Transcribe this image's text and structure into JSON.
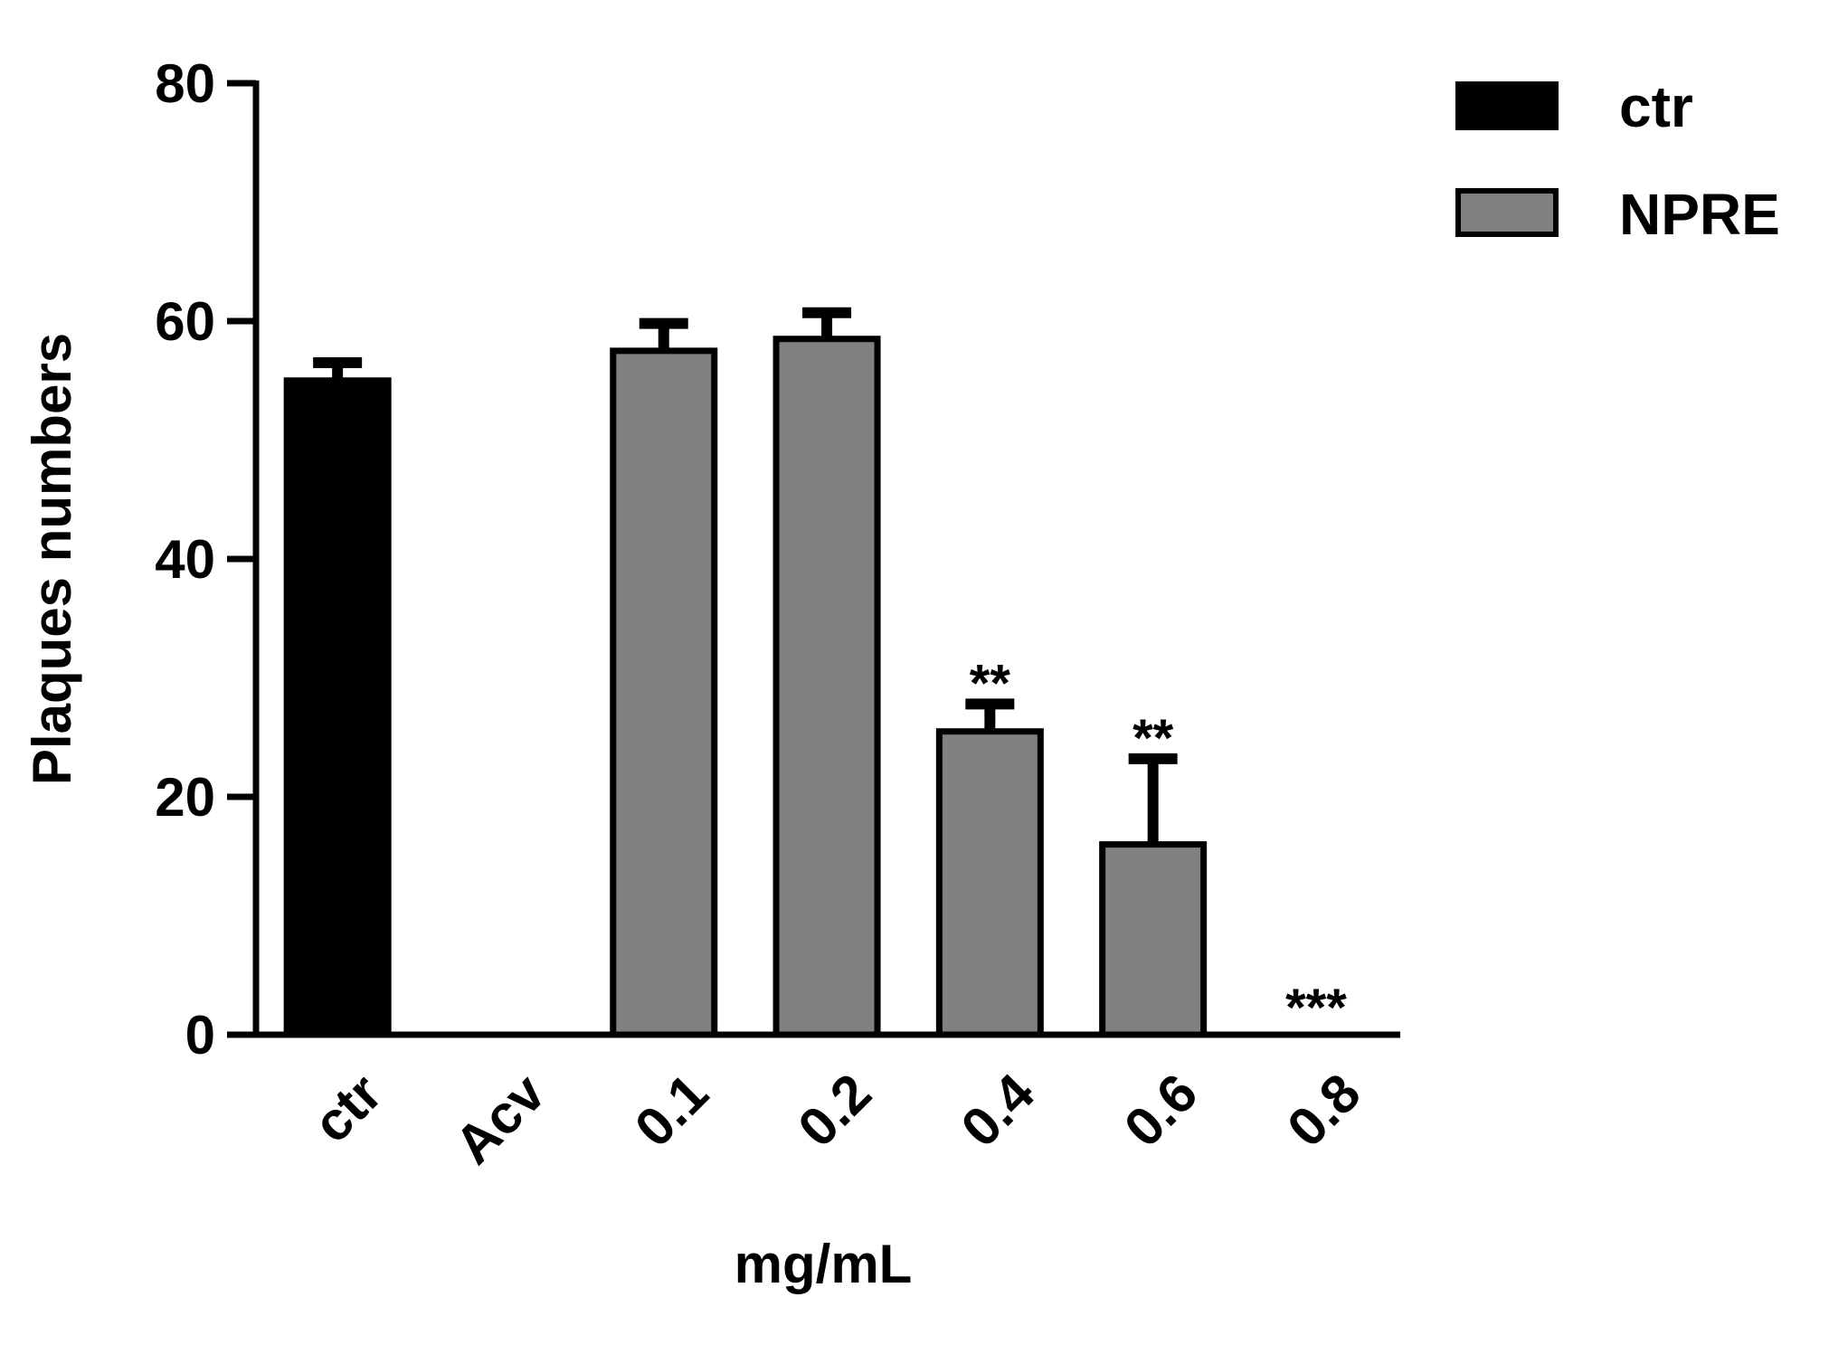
{
  "chart_data": {
    "type": "bar",
    "title": "",
    "xlabel": "mg/mL",
    "ylabel": "Plaques numbers",
    "ylim": [
      0,
      80
    ],
    "yticks": [
      0,
      20,
      40,
      60,
      80
    ],
    "y_tick_labels": [
      "0",
      "20",
      "40",
      "60",
      "80"
    ],
    "categories": [
      "ctr",
      "Acv",
      "0.1",
      "0.2",
      "0.4",
      "0.6",
      "0.8"
    ],
    "values": [
      55,
      0,
      57.5,
      58.5,
      25.5,
      16,
      0
    ],
    "error_upper": [
      1.5,
      0,
      2.3,
      2.2,
      2.3,
      7.2,
      0
    ],
    "groups": [
      "ctr",
      "ctr",
      "NPRE",
      "NPRE",
      "NPRE",
      "NPRE",
      "NPRE"
    ],
    "significance": [
      "",
      "",
      "",
      "",
      "**",
      "**",
      "***"
    ],
    "legend": {
      "position": "top-right",
      "entries": [
        {
          "label": "ctr",
          "color": "#000000"
        },
        {
          "label": "NPRE",
          "color": "#808080"
        }
      ]
    },
    "colors": {
      "ctr": "#000000",
      "NPRE": "#808080",
      "outline": "#000000"
    },
    "grid": false
  }
}
